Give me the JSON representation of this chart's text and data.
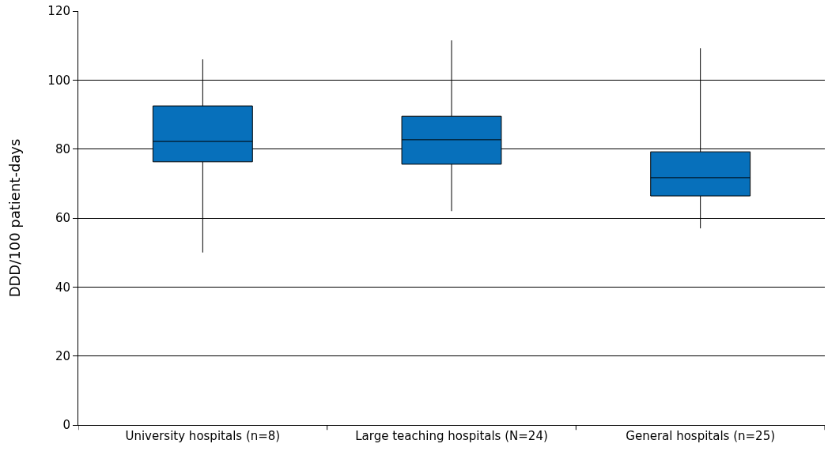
{
  "chart_data": {
    "type": "box",
    "ylabel": "DDD/100 patient-days",
    "categories": [
      "University hospitals (n=8)",
      "Large teaching hospitals (N=24)",
      "General hospitals (n=25)"
    ],
    "boxes": [
      {
        "low": 50,
        "q1": 76.3,
        "median": 82.2,
        "q3": 92.5,
        "high": 106
      },
      {
        "low": 62,
        "q1": 75.6,
        "median": 82.7,
        "q3": 89.5,
        "high": 111.5
      },
      {
        "low": 57,
        "q1": 66.4,
        "median": 71.7,
        "q3": 79.2,
        "high": 109.2
      }
    ],
    "color": "#0770bb",
    "ylim": [
      0,
      120
    ],
    "yticks": [
      0,
      20,
      40,
      60,
      80,
      100,
      120
    ],
    "grid": "y"
  }
}
